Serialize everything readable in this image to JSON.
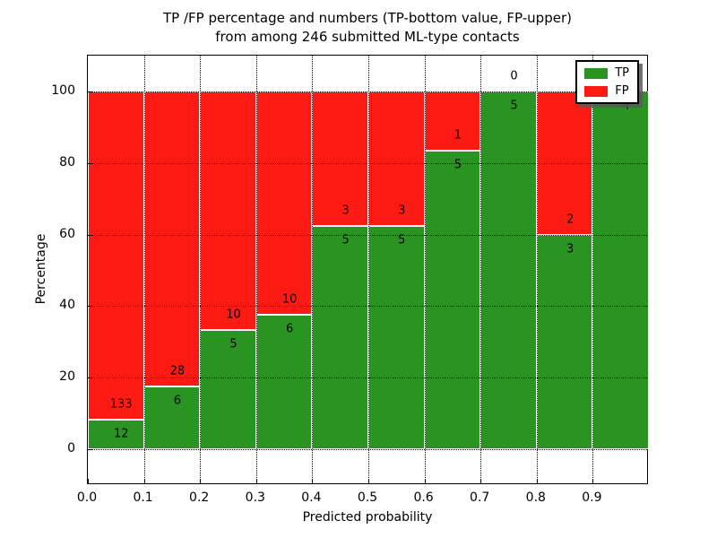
{
  "title": {
    "line1": "TP /FP percentage and numbers (TP-bottom value, FP-upper)",
    "line2": "from among 246 submitted ML-type contacts"
  },
  "colors": {
    "tp_green": "#2a9423",
    "fp_red": "#fc1a12",
    "grid": "#000000",
    "background": "#ffffff"
  },
  "legend": {
    "position": "upper right",
    "entries": [
      {
        "label": "TP",
        "color": "#2a9423"
      },
      {
        "label": "FP",
        "color": "#fc1a12"
      }
    ]
  },
  "chart_data": {
    "type": "bar",
    "stacked": true,
    "normalized_to_percent": true,
    "title": "TP /FP percentage and numbers (TP-bottom value, FP-upper) from among 246 submitted ML-type contacts",
    "xlabel": "Predicted probability",
    "ylabel": "Percentage",
    "total_contacts": 246,
    "bins": [
      0.0,
      0.1,
      0.2,
      0.3,
      0.4,
      0.5,
      0.6,
      0.7,
      0.8,
      0.9
    ],
    "bin_width": 0.1,
    "series": [
      {
        "name": "TP",
        "color": "#2a9423",
        "counts": [
          12,
          6,
          5,
          6,
          5,
          5,
          5,
          5,
          3,
          4
        ]
      },
      {
        "name": "FP",
        "color": "#fc1a12",
        "counts": [
          133,
          28,
          10,
          10,
          3,
          3,
          1,
          0,
          2,
          0
        ]
      }
    ],
    "tp_percent": [
      8.28,
      17.65,
      33.33,
      37.5,
      62.5,
      62.5,
      83.33,
      100.0,
      60.0,
      100.0
    ],
    "fp_label_visible": [
      true,
      true,
      true,
      true,
      true,
      true,
      true,
      true,
      true,
      false
    ],
    "xlim": [
      0.0,
      1.0
    ],
    "ylim": [
      -10,
      110
    ],
    "yticks": [
      0,
      20,
      40,
      60,
      80,
      100
    ],
    "xtick_labels": [
      "0.0",
      "0.1",
      "0.2",
      "0.3",
      "0.4",
      "0.5",
      "0.6",
      "0.7",
      "0.8",
      "0.9"
    ],
    "grid": "dotted, both axes, drawn over bars",
    "legend_position": "upper right"
  }
}
